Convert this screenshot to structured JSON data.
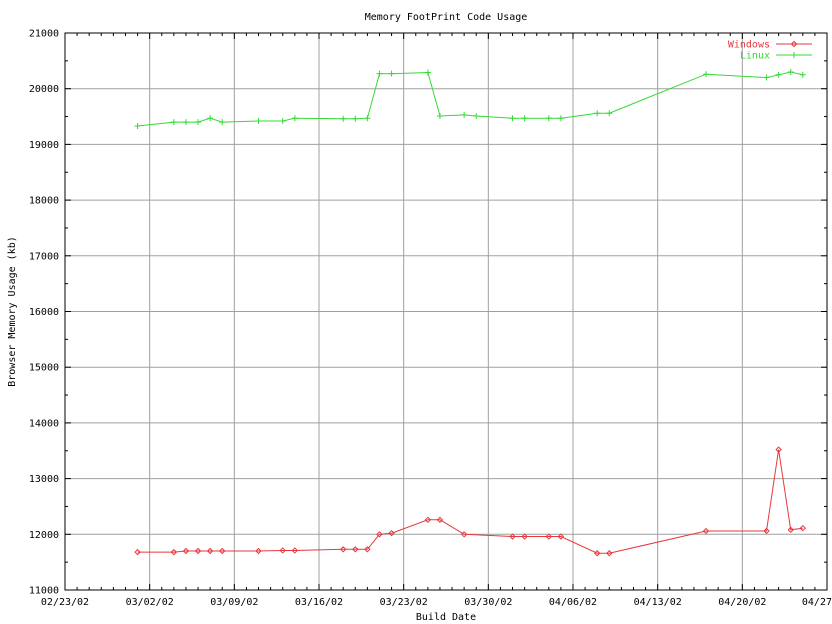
{
  "chart_data": {
    "type": "line",
    "title": "Memory FootPrint Code Usage",
    "xlabel": "Build Date",
    "ylabel": "Browser Memory Usage (kb)",
    "x_ticks": [
      "02/23/02",
      "03/02/02",
      "03/09/02",
      "03/16/02",
      "03/23/02",
      "03/30/02",
      "04/06/02",
      "04/13/02",
      "04/20/02",
      "04/27"
    ],
    "y_ticks": [
      "11000",
      "12000",
      "13000",
      "14000",
      "15000",
      "16000",
      "17000",
      "18000",
      "19000",
      "20000",
      "21000"
    ],
    "xlim_days": [
      0,
      63
    ],
    "ylim": [
      11000,
      21000
    ],
    "grid": true,
    "legend_position": "top-right",
    "series": [
      {
        "name": "Windows",
        "color": "#e8373d",
        "marker": "diamond",
        "points": [
          [
            6,
            11680
          ],
          [
            9,
            11680
          ],
          [
            10,
            11700
          ],
          [
            11,
            11700
          ],
          [
            12,
            11700
          ],
          [
            13,
            11700
          ],
          [
            16,
            11700
          ],
          [
            18,
            11710
          ],
          [
            19,
            11710
          ],
          [
            23,
            11730
          ],
          [
            24,
            11730
          ],
          [
            25,
            11730
          ],
          [
            26,
            12000
          ],
          [
            27,
            12020
          ],
          [
            30,
            12260
          ],
          [
            31,
            12260
          ],
          [
            33,
            12000
          ],
          [
            37,
            11960
          ],
          [
            38,
            11960
          ],
          [
            40,
            11960
          ],
          [
            41,
            11960
          ],
          [
            44,
            11660
          ],
          [
            45,
            11660
          ],
          [
            53,
            12060
          ],
          [
            58,
            12060
          ],
          [
            59,
            13520
          ],
          [
            60,
            12080
          ],
          [
            61,
            12110
          ]
        ]
      },
      {
        "name": "Linux",
        "color": "#35d935",
        "marker": "plus",
        "points": [
          [
            6,
            19330
          ],
          [
            9,
            19400
          ],
          [
            10,
            19400
          ],
          [
            11,
            19400
          ],
          [
            12,
            19470
          ],
          [
            13,
            19400
          ],
          [
            16,
            19420
          ],
          [
            18,
            19420
          ],
          [
            19,
            19470
          ],
          [
            23,
            19460
          ],
          [
            24,
            19460
          ],
          [
            25,
            19470
          ],
          [
            26,
            20270
          ],
          [
            27,
            20270
          ],
          [
            30,
            20290
          ],
          [
            31,
            19510
          ],
          [
            33,
            19530
          ],
          [
            34,
            19510
          ],
          [
            37,
            19470
          ],
          [
            38,
            19470
          ],
          [
            40,
            19470
          ],
          [
            41,
            19470
          ],
          [
            44,
            19560
          ],
          [
            45,
            19560
          ],
          [
            53,
            20260
          ],
          [
            58,
            20200
          ],
          [
            59,
            20250
          ],
          [
            60,
            20300
          ],
          [
            61,
            20250
          ]
        ]
      }
    ]
  }
}
